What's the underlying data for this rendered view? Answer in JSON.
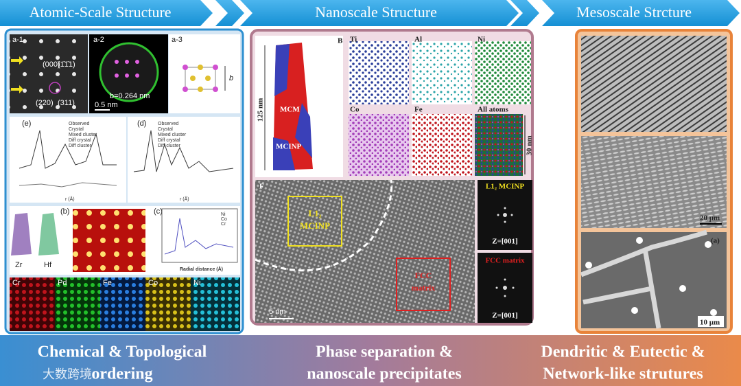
{
  "banner": [
    "Atomic-Scale Structure",
    "Nanoscale Structure",
    "Mesoscale Strcture"
  ],
  "atomic": {
    "a1": "a-1",
    "a2": "a-2",
    "a3": "a-3",
    "spots": [
      "(000)",
      "(1̄1̄1)",
      "(220)",
      "(311)"
    ],
    "spacing": "b=0.264 nm",
    "scale": "0.5 nm",
    "b_axis": "b",
    "e": "(e)",
    "d": "(d)",
    "b": "(b)",
    "c": "(c)",
    "legend": [
      "Observed",
      "Crystal",
      "Mixed cluster",
      "Diff crystal",
      "Diff cluster"
    ],
    "r_axis": [
      "r (Å)",
      "r (Å)"
    ],
    "zr": "Zr",
    "hf": "Hf",
    "rdf_legend": [
      "Ni",
      "Co",
      "Cr"
    ],
    "rdf_axis": "Radial distance (Å)",
    "maps": [
      "Cr",
      "Pd",
      "Fe",
      "Co",
      "Ni"
    ]
  },
  "nano": {
    "height": "125 nm",
    "mcm": "MCM",
    "mcinp": "MCINP",
    "b": "B",
    "elements": [
      "Ti",
      "Al",
      "Ni",
      "Co",
      "Fe",
      "All atoms"
    ],
    "width": "30 nm",
    "f": "F",
    "region1": [
      "L1₂",
      "MCINP"
    ],
    "region2": [
      "FCC",
      "matrix"
    ],
    "scale": "5 nm",
    "fft": [
      {
        "title": "L1₂ MCINP",
        "zone": "Z=[001]"
      },
      {
        "title": "FCC matrix",
        "zone": "Z=[001]"
      }
    ]
  },
  "meso": {
    "scale1": "20 μm",
    "a": "(a)",
    "scale2": "10 μm"
  },
  "captions": [
    [
      "Chemical & Topological",
      "ordering"
    ],
    [
      "Phase separation &",
      "nanoscale precipitates"
    ],
    [
      "Dendritic & Eutectic &",
      "Network-like strutures"
    ]
  ],
  "watermark": "大数跨境"
}
